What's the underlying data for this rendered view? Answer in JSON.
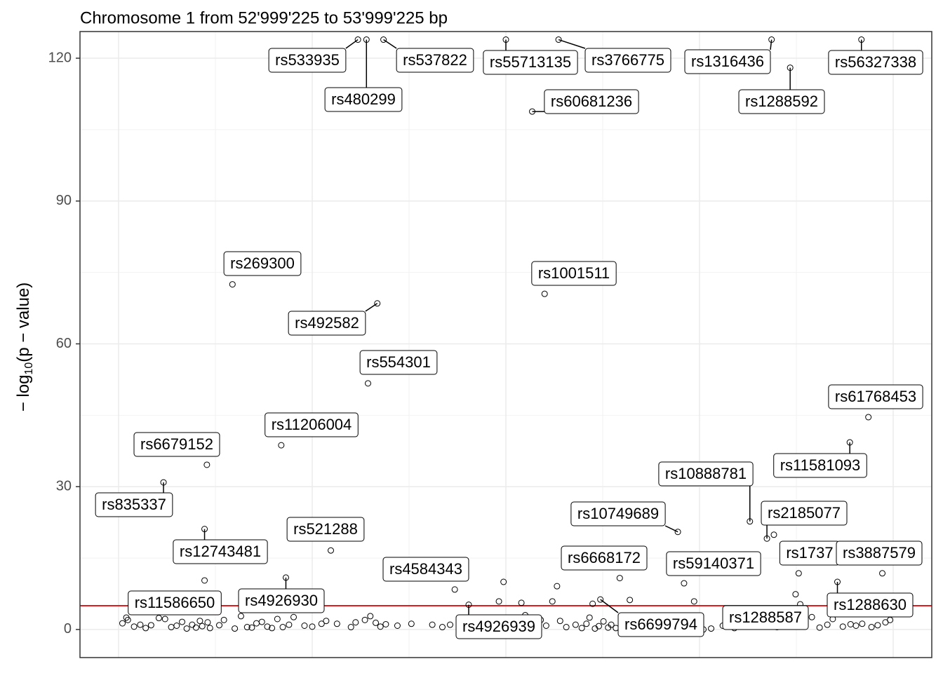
{
  "chart_data": {
    "type": "scatter",
    "title": "Chromosome 1 from 52'999'225 to 53'999'225 bp",
    "ylabel": [
      "− log",
      "10",
      "(p − value)"
    ],
    "xlim": [
      52950180,
      54049820
    ],
    "ylim": [
      -5.9,
      125.6
    ],
    "xgrid": [
      53000000,
      53250000,
      53500000,
      53750000,
      54000000
    ],
    "yticks": [
      0,
      30,
      60,
      90,
      120
    ],
    "grid": true,
    "hline": 5,
    "hline_color": "#e41a1c",
    "point_color": "#000000",
    "x": [
      53058000,
      53114000,
      53111000,
      53010000,
      53147000,
      53210000,
      53334000,
      53322000,
      53274000,
      53216000,
      53434000,
      53452000,
      53309000,
      53320000,
      53342000,
      53500000,
      53568000,
      53534000,
      53550000,
      53843000,
      53867000,
      53959000,
      53968000,
      53944000,
      53815000,
      53837000,
      53722000,
      53647000,
      53730000,
      53878000,
      53986000,
      53928000,
      53880000,
      53622000,
      53846000,
      53874000,
      53497000,
      53566000,
      53660000,
      53743000,
      53491000,
      53520000,
      53560000,
      53612000,
      53111000,
      53005000,
      53012000,
      53020000,
      53028000,
      53035000,
      53042000,
      53052000,
      53060000,
      53068000,
      53075000,
      53082000,
      53088000,
      53095000,
      53100000,
      53105000,
      53108000,
      53115000,
      53118000,
      53130000,
      53136000,
      53150000,
      53158000,
      53166000,
      53172000,
      53178000,
      53185000,
      53192000,
      53198000,
      53205000,
      53212000,
      53220000,
      53226000,
      53240000,
      53250000,
      53262000,
      53268000,
      53282000,
      53300000,
      53306000,
      53318000,
      53325000,
      53332000,
      53338000,
      53345000,
      53360000,
      53378000,
      53405000,
      53418000,
      53428000,
      53440000,
      53458000,
      53470000,
      53486000,
      53505000,
      53512000,
      53525000,
      53530000,
      53545000,
      53552000,
      53570000,
      53578000,
      53590000,
      53598000,
      53604000,
      53608000,
      53615000,
      53620000,
      53626000,
      53632000,
      53636000,
      53642000,
      53652000,
      53665000,
      53675000,
      53690000,
      53700000,
      53755000,
      53765000,
      53780000,
      53795000,
      53810000,
      53825000,
      53850000,
      53860000,
      53870000,
      53885000,
      53895000,
      53905000,
      53915000,
      53922000,
      53935000,
      53945000,
      53952000,
      53960000,
      53972000,
      53980000,
      53990000,
      53996000
    ],
    "values": [
      30.9,
      34.6,
      21.1,
      2.5,
      72.5,
      38.7,
      68.5,
      51.7,
      16.6,
      10.9,
      8.4,
      5.2,
      123.9,
      123.9,
      123.9,
      123.9,
      123.9,
      108.8,
      70.5,
      123.9,
      118.0,
      123.9,
      44.6,
      39.3,
      22.7,
      19.1,
      20.5,
      10.8,
      9.7,
      11.8,
      11.8,
      10.0,
      5.3,
      6.3,
      19.9,
      7.4,
      10.0,
      9.1,
      6.2,
      5.9,
      5.9,
      5.6,
      5.9,
      5.4,
      10.3,
      1.3,
      2.0,
      0.6,
      1.0,
      0.3,
      0.9,
      2.4,
      2.2,
      0.5,
      0.8,
      1.6,
      0.2,
      1.0,
      0.4,
      1.8,
      0.7,
      1.5,
      0.3,
      0.9,
      2.0,
      0.2,
      2.8,
      0.5,
      0.4,
      1.3,
      1.6,
      0.6,
      0.3,
      2.2,
      0.5,
      1.0,
      2.6,
      0.8,
      0.6,
      1.2,
      1.8,
      1.2,
      0.5,
      1.5,
      2.0,
      2.8,
      1.4,
      0.6,
      1.1,
      0.8,
      1.2,
      1.0,
      0.5,
      1.0,
      0.3,
      1.3,
      0.8,
      1.5,
      0.6,
      2.2,
      3.0,
      0.4,
      2.0,
      0.8,
      1.8,
      0.5,
      1.0,
      0.3,
      1.2,
      2.5,
      0.2,
      0.7,
      1.7,
      0.4,
      1.0,
      0.3,
      2.0,
      0.9,
      0.4,
      1.1,
      0.3,
      0.0,
      0.2,
      0.8,
      0.3,
      0.6,
      1.2,
      0.5,
      1.4,
      0.6,
      1.8,
      2.6,
      0.4,
      1.0,
      2.2,
      0.6,
      1.1,
      0.8,
      1.2,
      0.5,
      0.9,
      1.5,
      2.0
    ],
    "labels": [
      "rs835337",
      "rs6679152",
      "rs12743481",
      "rs11586650",
      "rs269300",
      "rs11206004",
      "rs492582",
      "rs554301",
      "rs521288",
      "rs4926930",
      "rs4584343",
      "rs4926939",
      "rs533935",
      "rs480299",
      "rs537822",
      "rs55713135",
      "rs3766775",
      "rs60681236",
      "rs1001511",
      "rs1316436",
      "rs1288592",
      "rs56327338",
      "rs61768453",
      "rs11581093",
      "rs10888781",
      "rs2185077",
      "rs10749689",
      "rs6668172",
      "rs59140371",
      "rs1737",
      "rs3887579",
      "rs1288630",
      "rs1288587",
      "rs6699794",
      null,
      null,
      null,
      null,
      null,
      null,
      null,
      null,
      null,
      null,
      null,
      null,
      null,
      null,
      null,
      null,
      null,
      null,
      null,
      null,
      null,
      null,
      null,
      null,
      null,
      null,
      null,
      null,
      null,
      null,
      null,
      null,
      null,
      null,
      null,
      null,
      null,
      null,
      null,
      null,
      null,
      null,
      null,
      null,
      null,
      null,
      null,
      null,
      null,
      null,
      null,
      null,
      null,
      null,
      null,
      null,
      null,
      null,
      null,
      null,
      null,
      null,
      null,
      null,
      null,
      null,
      null,
      null,
      null,
      null,
      null,
      null,
      null,
      null,
      null,
      null,
      null,
      null,
      null,
      null,
      null,
      null,
      null,
      null,
      null,
      null,
      null,
      null,
      null,
      null,
      null,
      null,
      null,
      null,
      null,
      null,
      null,
      null,
      null,
      null,
      null,
      null,
      null,
      null,
      null,
      null,
      null,
      null,
      null,
      null,
      null
    ]
  }
}
